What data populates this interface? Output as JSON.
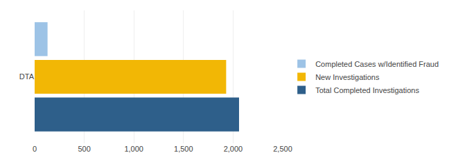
{
  "chart_data": {
    "type": "bar",
    "orientation": "horizontal",
    "categories": [
      "DTA"
    ],
    "series": [
      {
        "name": "Completed Cases w/Identified Fraud",
        "color": "#9dc3e6",
        "values": [
          130
        ]
      },
      {
        "name": "New Investigations",
        "color": "#f2b705",
        "values": [
          1930
        ]
      },
      {
        "name": "Total Completed Investigations",
        "color": "#2e5f8a",
        "values": [
          2060
        ]
      }
    ],
    "xlim": [
      0,
      2500
    ],
    "xticks": [
      0,
      500,
      {
        "value": 1000,
        "label": "1,000"
      },
      {
        "value": 1500,
        "label": "1,500"
      },
      {
        "value": 2000,
        "label": "2,000"
      },
      {
        "value": 2500,
        "label": "2,500"
      }
    ],
    "grid": true,
    "legend": "right"
  }
}
